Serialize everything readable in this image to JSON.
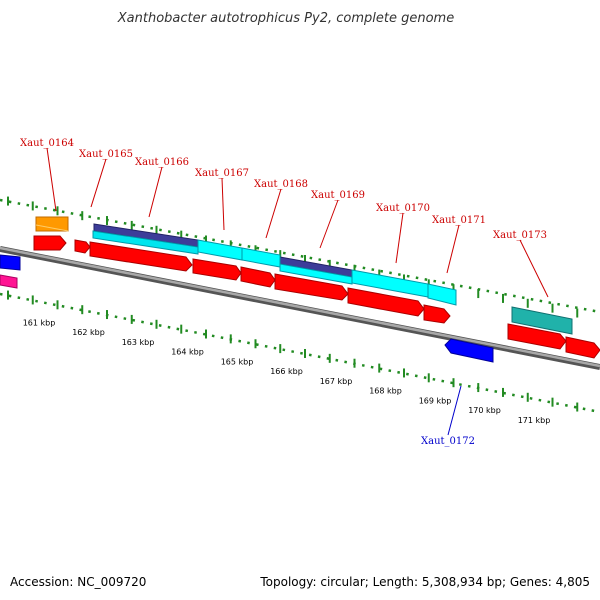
{
  "title": "Xanthobacter autotrophicus Py2, complete genome",
  "footer": {
    "accession": "Accession: NC_009720",
    "summary": "Topology: circular; Length: 5,308,934 bp; Genes: 4,805"
  },
  "colors": {
    "forward_label": "#cc0000",
    "reverse_label": "#0000cc",
    "backbone": "#888888",
    "ticks": "#228b22"
  },
  "scale": {
    "unit": "kbp",
    "labels": [
      "161 kbp",
      "162 kbp",
      "163 kbp",
      "164 kbp",
      "165 kbp",
      "166 kbp",
      "167 kbp",
      "168 kbp",
      "169 kbp",
      "170 kbp",
      "171 kbp"
    ]
  },
  "gene_labels": {
    "forward": [
      "Xaut_0164",
      "Xaut_0165",
      "Xaut_0166",
      "Xaut_0167",
      "Xaut_0168",
      "Xaut_0169",
      "Xaut_0170",
      "Xaut_0171",
      "Xaut_0173"
    ],
    "reverse": [
      "Xaut_0172"
    ]
  }
}
